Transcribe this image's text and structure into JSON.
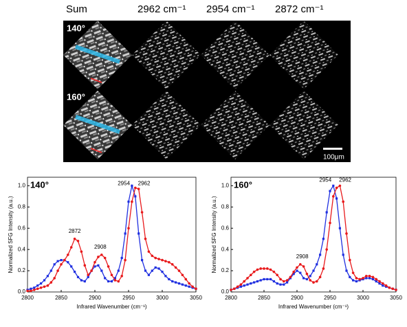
{
  "image_panel": {
    "columns": [
      "Sum",
      "2962 cm⁻¹",
      "2954 cm⁻¹",
      "2872 cm⁻¹"
    ],
    "rows": [
      "140°",
      "160°"
    ],
    "scale_bar": "100μm"
  },
  "chart_data": [
    {
      "type": "line",
      "title": "140°",
      "x_label": "Infrared Wavenumber (cm⁻¹)",
      "y_label": "Normalized SFG Intensity (a.u.)",
      "x": [
        2800,
        2805,
        2810,
        2815,
        2820,
        2825,
        2830,
        2835,
        2840,
        2845,
        2850,
        2855,
        2860,
        2865,
        2870,
        2875,
        2880,
        2885,
        2890,
        2895,
        2900,
        2905,
        2910,
        2915,
        2920,
        2925,
        2930,
        2935,
        2940,
        2945,
        2950,
        2955,
        2960,
        2965,
        2970,
        2975,
        2980,
        2985,
        2990,
        2995,
        3000,
        3005,
        3010,
        3015,
        3020,
        3025,
        3030,
        3035,
        3040,
        3045,
        3050
      ],
      "series": [
        {
          "color": "#1f2fe0",
          "values": [
            0.02,
            0.03,
            0.04,
            0.06,
            0.08,
            0.11,
            0.15,
            0.2,
            0.26,
            0.29,
            0.3,
            0.3,
            0.28,
            0.24,
            0.19,
            0.14,
            0.11,
            0.1,
            0.14,
            0.2,
            0.24,
            0.25,
            0.2,
            0.13,
            0.1,
            0.1,
            0.13,
            0.2,
            0.32,
            0.55,
            0.85,
            1.0,
            0.9,
            0.55,
            0.3,
            0.2,
            0.16,
            0.2,
            0.23,
            0.22,
            0.19,
            0.15,
            0.12,
            0.1,
            0.09,
            0.08,
            0.07,
            0.06,
            0.05,
            0.04,
            0.03
          ]
        },
        {
          "color": "#e8191b",
          "values": [
            0.01,
            0.01,
            0.02,
            0.03,
            0.04,
            0.05,
            0.06,
            0.09,
            0.13,
            0.2,
            0.26,
            0.3,
            0.35,
            0.42,
            0.5,
            0.48,
            0.38,
            0.25,
            0.16,
            0.2,
            0.28,
            0.33,
            0.35,
            0.32,
            0.24,
            0.16,
            0.11,
            0.1,
            0.15,
            0.3,
            0.6,
            0.85,
            0.98,
            0.97,
            0.75,
            0.5,
            0.38,
            0.34,
            0.32,
            0.31,
            0.3,
            0.29,
            0.28,
            0.26,
            0.23,
            0.2,
            0.16,
            0.12,
            0.08,
            0.05,
            0.03
          ]
        }
      ],
      "annotations": [
        {
          "text": "2872",
          "x": 2870,
          "y": 0.57
        },
        {
          "text": "2908",
          "x": 2908,
          "y": 0.42
        },
        {
          "text": "2954",
          "x": 2943,
          "y": 1.02
        },
        {
          "text": "2962",
          "x": 2973,
          "y": 1.02
        }
      ],
      "xlim": [
        2800,
        3050
      ],
      "xticks": [
        2800,
        2850,
        2900,
        2950,
        3000,
        3050
      ],
      "ylim": [
        0,
        1.08
      ],
      "yticks": [
        {
          "value": 0,
          "label": "0.0"
        },
        {
          "value": 0.2,
          "label": "0.2"
        },
        {
          "value": 0.4,
          "label": "0.4"
        },
        {
          "value": 0.6,
          "label": "0.6"
        },
        {
          "value": 0.8,
          "label": "0.8"
        },
        {
          "value": 1,
          "label": "1.0"
        }
      ]
    },
    {
      "type": "line",
      "title": "160°",
      "x_label": "Infrared Wavenumber (cm⁻¹)",
      "y_label": "Normalized SFG Intensity (a.u.)",
      "x": [
        2800,
        2805,
        2810,
        2815,
        2820,
        2825,
        2830,
        2835,
        2840,
        2845,
        2850,
        2855,
        2860,
        2865,
        2870,
        2875,
        2880,
        2885,
        2890,
        2895,
        2900,
        2905,
        2910,
        2915,
        2920,
        2925,
        2930,
        2935,
        2940,
        2945,
        2950,
        2955,
        2960,
        2965,
        2970,
        2975,
        2980,
        2985,
        2990,
        2995,
        3000,
        3005,
        3010,
        3015,
        3020,
        3025,
        3030,
        3035,
        3040,
        3045,
        3050
      ],
      "series": [
        {
          "color": "#1f2fe0",
          "values": [
            0.02,
            0.03,
            0.04,
            0.05,
            0.06,
            0.07,
            0.08,
            0.09,
            0.1,
            0.11,
            0.12,
            0.12,
            0.12,
            0.1,
            0.08,
            0.07,
            0.07,
            0.09,
            0.13,
            0.17,
            0.2,
            0.18,
            0.13,
            0.12,
            0.15,
            0.2,
            0.26,
            0.35,
            0.5,
            0.75,
            0.95,
            1.0,
            0.88,
            0.6,
            0.35,
            0.2,
            0.14,
            0.11,
            0.1,
            0.11,
            0.12,
            0.13,
            0.13,
            0.12,
            0.1,
            0.08,
            0.06,
            0.05,
            0.04,
            0.03,
            0.02
          ]
        },
        {
          "color": "#e8191b",
          "values": [
            0.02,
            0.03,
            0.05,
            0.07,
            0.1,
            0.13,
            0.16,
            0.19,
            0.21,
            0.22,
            0.22,
            0.22,
            0.21,
            0.19,
            0.16,
            0.12,
            0.1,
            0.11,
            0.14,
            0.19,
            0.23,
            0.26,
            0.24,
            0.17,
            0.11,
            0.09,
            0.1,
            0.14,
            0.22,
            0.4,
            0.65,
            0.9,
            0.98,
            1.0,
            0.85,
            0.55,
            0.3,
            0.18,
            0.13,
            0.12,
            0.13,
            0.15,
            0.15,
            0.14,
            0.12,
            0.1,
            0.08,
            0.06,
            0.04,
            0.03,
            0.02
          ]
        }
      ],
      "annotations": [
        {
          "text": "2908",
          "x": 2908,
          "y": 0.33
        },
        {
          "text": "2954",
          "x": 2943,
          "y": 1.05
        },
        {
          "text": "2962",
          "x": 2973,
          "y": 1.05
        }
      ],
      "xlim": [
        2800,
        3050
      ],
      "xticks": [
        2800,
        2850,
        2900,
        2950,
        3000,
        3050
      ],
      "ylim": [
        0,
        1.08
      ],
      "yticks": [
        {
          "value": 0,
          "label": "0.0"
        },
        {
          "value": 0.2,
          "label": "0.2"
        },
        {
          "value": 0.4,
          "label": "0.4"
        },
        {
          "value": 0.6,
          "label": "0.6"
        },
        {
          "value": 0.8,
          "label": "0.8"
        },
        {
          "value": 1,
          "label": "1.0"
        }
      ]
    }
  ]
}
